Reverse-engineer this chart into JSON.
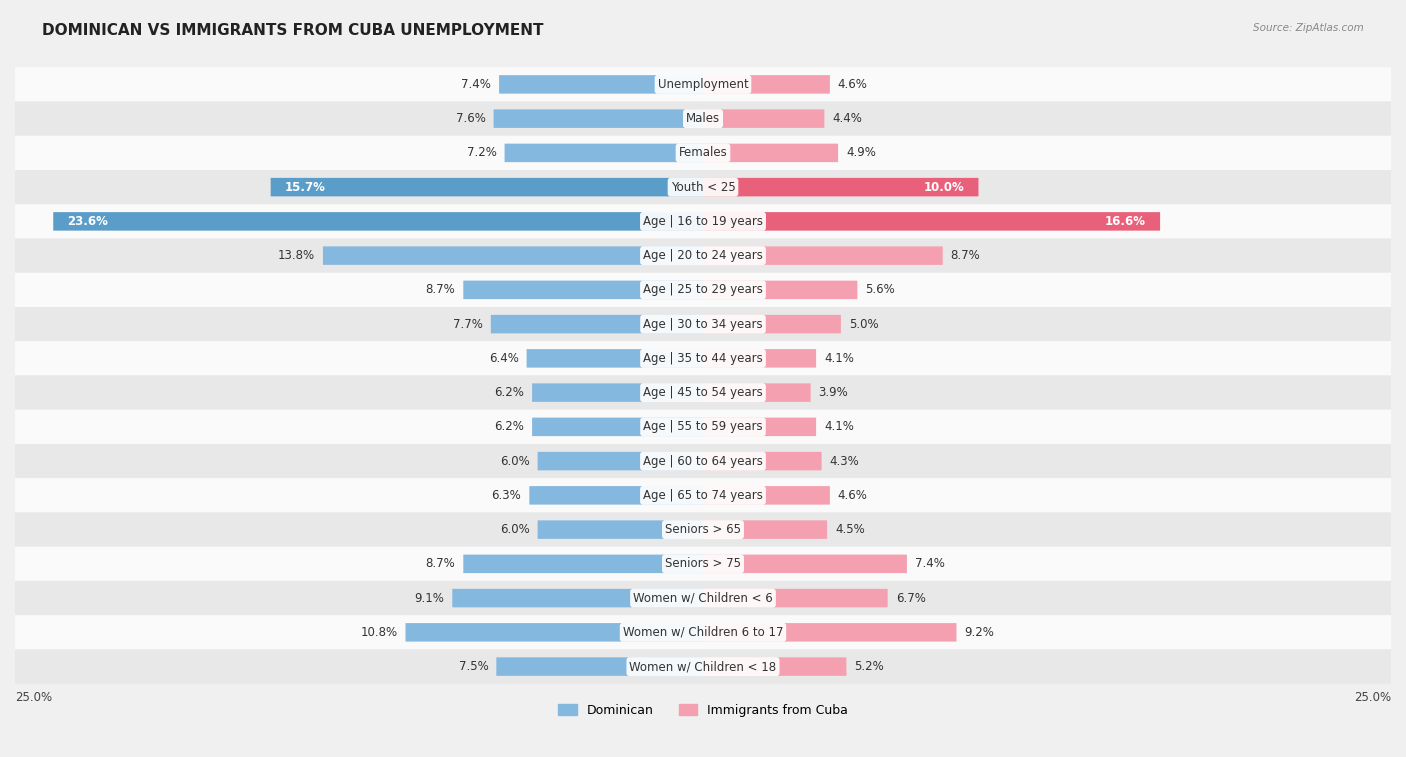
{
  "title": "DOMINICAN VS IMMIGRANTS FROM CUBA UNEMPLOYMENT",
  "source": "Source: ZipAtlas.com",
  "categories": [
    "Unemployment",
    "Males",
    "Females",
    "Youth < 25",
    "Age | 16 to 19 years",
    "Age | 20 to 24 years",
    "Age | 25 to 29 years",
    "Age | 30 to 34 years",
    "Age | 35 to 44 years",
    "Age | 45 to 54 years",
    "Age | 55 to 59 years",
    "Age | 60 to 64 years",
    "Age | 65 to 74 years",
    "Seniors > 65",
    "Seniors > 75",
    "Women w/ Children < 6",
    "Women w/ Children 6 to 17",
    "Women w/ Children < 18"
  ],
  "dominican": [
    7.4,
    7.6,
    7.2,
    15.7,
    23.6,
    13.8,
    8.7,
    7.7,
    6.4,
    6.2,
    6.2,
    6.0,
    6.3,
    6.0,
    8.7,
    9.1,
    10.8,
    7.5
  ],
  "cuba": [
    4.6,
    4.4,
    4.9,
    10.0,
    16.6,
    8.7,
    5.6,
    5.0,
    4.1,
    3.9,
    4.1,
    4.3,
    4.6,
    4.5,
    7.4,
    6.7,
    9.2,
    5.2
  ],
  "dominican_color": "#85b8de",
  "cuba_color": "#f4a0b0",
  "dominican_highlight": "#5b9dc9",
  "cuba_highlight": "#e8607a",
  "dominican_label": "Dominican",
  "cuba_label": "Immigrants from Cuba",
  "axis_max": 25.0,
  "axis_label": "25.0%",
  "bg_color": "#f0f0f0",
  "row_light_color": "#fafafa",
  "row_dark_color": "#e8e8e8",
  "title_fontsize": 11,
  "label_fontsize": 8.5,
  "value_fontsize": 8.5,
  "highlight_rows": [
    3,
    4
  ],
  "center_label_bg": "#ffffff"
}
